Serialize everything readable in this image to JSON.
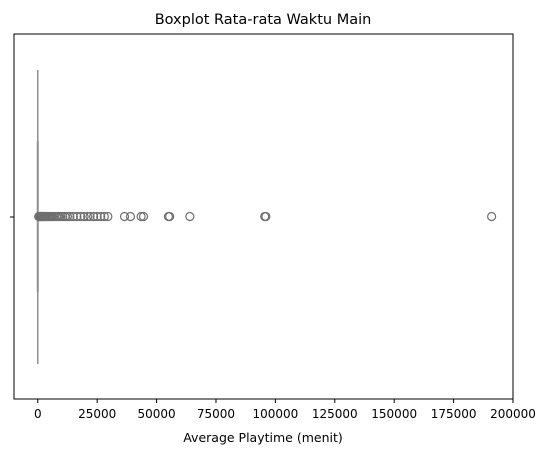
{
  "chart_data": {
    "type": "boxplot",
    "title": "Boxplot Rata-rata Waktu Main",
    "xlabel": "Average Playtime (menit)",
    "ylabel": "",
    "orientation": "horizontal",
    "xlim": [
      -10000,
      200000
    ],
    "xticks": [
      0,
      25000,
      50000,
      75000,
      100000,
      125000,
      150000,
      175000,
      200000
    ],
    "xtick_labels": [
      "0",
      "25000",
      "50000",
      "75000",
      "100000",
      "125000",
      "150000",
      "175000",
      "200000"
    ],
    "grid": false,
    "box": {
      "min": 0,
      "q1": 0,
      "median": 0,
      "q3": 0,
      "max": 0
    },
    "outliers": [
      400,
      600,
      800,
      1000,
      1200,
      1400,
      1600,
      1800,
      2000,
      2300,
      2600,
      2900,
      3200,
      3600,
      4000,
      4500,
      5000,
      5500,
      6000,
      6600,
      7200,
      8000,
      8800,
      9600,
      10500,
      11500,
      12500,
      13500,
      15000,
      16500,
      18000,
      19500,
      21000,
      22000,
      23500,
      25000,
      26500,
      28000,
      29500,
      36500,
      39000,
      43500,
      44500,
      55000,
      55500,
      64000,
      95500,
      96000,
      191000
    ],
    "colors": {
      "box": "#8f8f8f",
      "outlier_edge": "#6f6f6f"
    }
  }
}
